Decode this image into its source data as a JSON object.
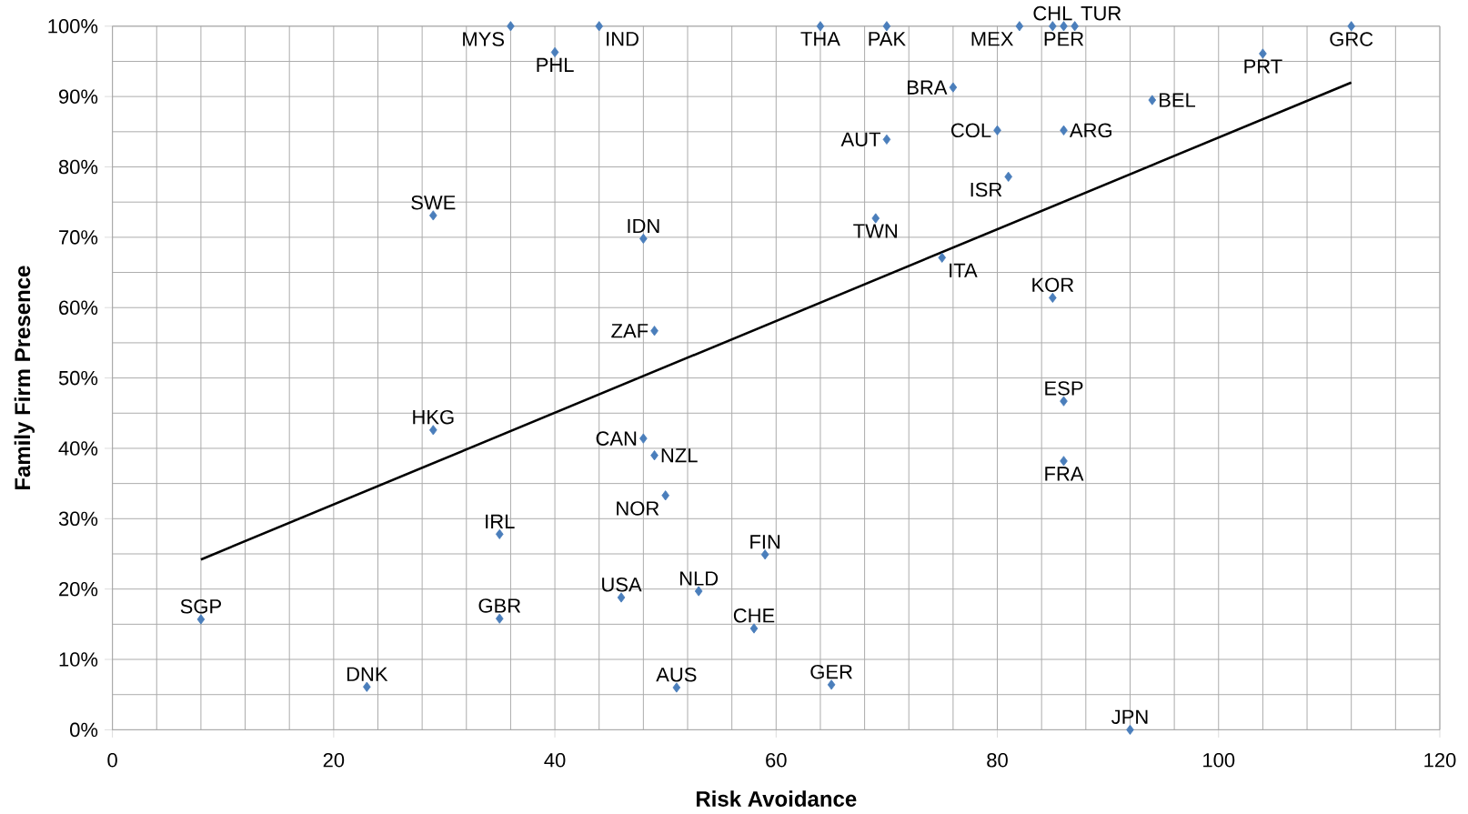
{
  "chart_data": {
    "type": "scatter",
    "xlabel": "Risk Avoidance",
    "ylabel": "Family Firm Presence",
    "xlim": [
      0,
      120
    ],
    "xticks": [
      0,
      20,
      40,
      60,
      80,
      100,
      120
    ],
    "ylim": [
      0,
      100
    ],
    "yticks": [
      {
        "value": 0,
        "label": "0%"
      },
      {
        "value": 10,
        "label": "10%"
      },
      {
        "value": 20,
        "label": "20%"
      },
      {
        "value": 30,
        "label": "30%"
      },
      {
        "value": 40,
        "label": "40%"
      },
      {
        "value": 50,
        "label": "50%"
      },
      {
        "value": 60,
        "label": "60%"
      },
      {
        "value": 70,
        "label": "70%"
      },
      {
        "value": 80,
        "label": "80%"
      },
      {
        "value": 90,
        "label": "90%"
      },
      {
        "value": 100,
        "label": "100%"
      }
    ],
    "grid": true,
    "marker": "diamond",
    "series": [
      {
        "color": "#4a7ebb",
        "x": [
          36,
          40,
          44,
          64,
          70,
          82,
          85,
          86,
          87,
          112,
          104,
          76,
          94,
          80,
          86,
          70,
          81,
          29,
          69,
          48,
          75,
          85,
          49,
          86,
          29,
          48,
          49,
          86,
          50,
          35,
          59,
          46,
          53,
          8,
          35,
          58,
          23,
          51,
          65,
          92
        ],
        "values": [
          100,
          96.3,
          100,
          100,
          100,
          100,
          100,
          100,
          100,
          100,
          96.1,
          91.3,
          89.5,
          85.2,
          85.2,
          83.9,
          78.6,
          73.1,
          72.7,
          69.8,
          67.1,
          61.4,
          56.7,
          46.7,
          42.6,
          41.4,
          39.0,
          38.2,
          33.3,
          27.8,
          24.9,
          18.8,
          19.7,
          15.7,
          15.8,
          14.4,
          6.1,
          6.0,
          6.4,
          0
        ]
      },
      {
        "type": "line",
        "color": "#000000",
        "x": [
          8,
          112
        ],
        "values": [
          24.2,
          92.0
        ],
        "marker": "none"
      }
    ],
    "annotations": [
      {
        "text": "MYS",
        "x": 36,
        "y": 100
      },
      {
        "text": "PHL",
        "x": 40,
        "y": 96.3
      },
      {
        "text": "IND",
        "x": 44,
        "y": 100
      },
      {
        "text": "THA",
        "x": 64,
        "y": 100
      },
      {
        "text": "PAK",
        "x": 70,
        "y": 100
      },
      {
        "text": "MEX",
        "x": 82,
        "y": 100
      },
      {
        "text": "CHL",
        "x": 85,
        "y": 100
      },
      {
        "text": "PER",
        "x": 86,
        "y": 100
      },
      {
        "text": "TUR",
        "x": 87,
        "y": 100
      },
      {
        "text": "GRC",
        "x": 112,
        "y": 100
      },
      {
        "text": "PRT",
        "x": 104,
        "y": 96.1
      },
      {
        "text": "BRA",
        "x": 76,
        "y": 91.3
      },
      {
        "text": "BEL",
        "x": 94,
        "y": 89.5
      },
      {
        "text": "COL",
        "x": 80,
        "y": 85.2
      },
      {
        "text": "ARG",
        "x": 86,
        "y": 85.2
      },
      {
        "text": "AUT",
        "x": 70,
        "y": 83.9
      },
      {
        "text": "ISR",
        "x": 81,
        "y": 78.6
      },
      {
        "text": "SWE",
        "x": 29,
        "y": 73.1
      },
      {
        "text": "TWN",
        "x": 69,
        "y": 72.7
      },
      {
        "text": "IDN",
        "x": 48,
        "y": 69.8
      },
      {
        "text": "ITA",
        "x": 75,
        "y": 67.1
      },
      {
        "text": "KOR",
        "x": 85,
        "y": 61.4
      },
      {
        "text": "ZAF",
        "x": 49,
        "y": 56.7
      },
      {
        "text": "ESP",
        "x": 86,
        "y": 46.7
      },
      {
        "text": "HKG",
        "x": 29,
        "y": 42.6
      },
      {
        "text": "CAN",
        "x": 48,
        "y": 41.4
      },
      {
        "text": "NZL",
        "x": 49,
        "y": 39.0
      },
      {
        "text": "FRA",
        "x": 86,
        "y": 38.2
      },
      {
        "text": "NOR",
        "x": 50,
        "y": 33.3
      },
      {
        "text": "IRL",
        "x": 35,
        "y": 27.8
      },
      {
        "text": "FIN",
        "x": 59,
        "y": 24.9
      },
      {
        "text": "USA",
        "x": 46,
        "y": 18.8
      },
      {
        "text": "NLD",
        "x": 53,
        "y": 19.7
      },
      {
        "text": "SGP",
        "x": 8,
        "y": 15.7
      },
      {
        "text": "GBR",
        "x": 35,
        "y": 15.8
      },
      {
        "text": "CHE",
        "x": 58,
        "y": 14.4
      },
      {
        "text": "DNK",
        "x": 23,
        "y": 6.1
      },
      {
        "text": "AUS",
        "x": 51,
        "y": 6.0
      },
      {
        "text": "GER",
        "x": 65,
        "y": 6.4
      },
      {
        "text": "JPN",
        "x": 92,
        "y": 0
      }
    ]
  }
}
